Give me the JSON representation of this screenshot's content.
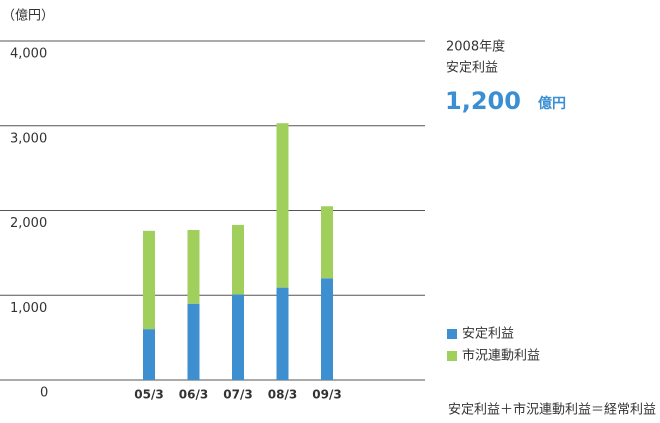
{
  "chart_data": {
    "type": "bar",
    "stacked": true,
    "unit_label": "（億円）",
    "categories": [
      "05/3",
      "06/3",
      "07/3",
      "08/3",
      "09/3"
    ],
    "series": [
      {
        "name": "安定利益",
        "color": "#3d8fd0",
        "values": [
          600,
          900,
          1010,
          1090,
          1200
        ]
      },
      {
        "name": "市況連動利益",
        "color": "#a0cf5c",
        "values": [
          1160,
          870,
          820,
          1940,
          850
        ]
      }
    ],
    "ylim": [
      0,
      4000
    ],
    "yticks": [
      0,
      {
        "value": 1000,
        "label": "1,000"
      },
      {
        "value": 2000,
        "label": "2,000"
      },
      {
        "value": 3000,
        "label": "3,000"
      },
      {
        "value": 4000,
        "label": "4,000"
      }
    ],
    "grid": true,
    "annotation": {
      "year": "2008年度",
      "label": "安定利益",
      "value": "1,200",
      "unit": "億円"
    },
    "footnote": "安定利益＋市況連動利益＝経常利益"
  }
}
